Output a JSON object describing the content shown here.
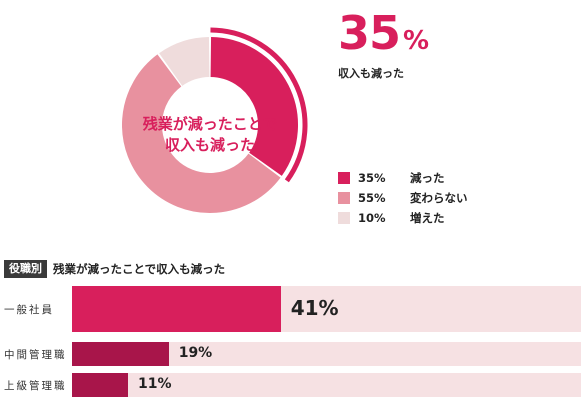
{
  "chart_data": [
    {
      "type": "pie",
      "center_label_lines": [
        "残業が減ったことで",
        "収入も減った"
      ],
      "highlight": {
        "value": "35",
        "unit": "%",
        "label": "収入も減った"
      },
      "slices": [
        {
          "label": "減った",
          "pct_text": "35%",
          "value": 35,
          "color": "#d81f5c"
        },
        {
          "label": "変わらない",
          "pct_text": "55%",
          "value": 55,
          "color": "#e8919f"
        },
        {
          "label": "増えた",
          "pct_text": "10%",
          "value": 10,
          "color": "#efdcdc"
        }
      ]
    },
    {
      "type": "bar",
      "badge": "役職別",
      "title": "残業が減ったことで収入も減った",
      "categories": [
        "一般社員",
        "中間管理職",
        "上級管理職"
      ],
      "values": [
        41,
        19,
        11
      ],
      "value_labels": [
        "41%",
        "19%",
        "11%"
      ],
      "colors": [
        "#d81f5c",
        "#a8154a",
        "#a8154a"
      ],
      "xlim": [
        0,
        100
      ]
    }
  ]
}
